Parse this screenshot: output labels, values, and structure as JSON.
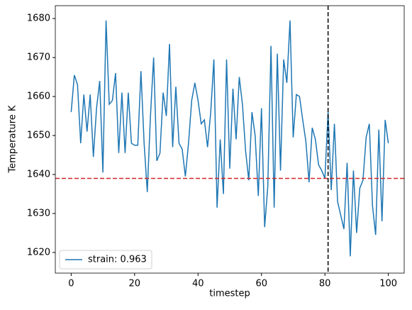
{
  "chart_data": {
    "type": "line",
    "xlabel": "timestep",
    "ylabel": "Temperature K",
    "x": [
      0,
      1,
      2,
      3,
      4,
      5,
      6,
      7,
      8,
      9,
      10,
      11,
      12,
      13,
      14,
      15,
      16,
      17,
      18,
      19,
      20,
      21,
      22,
      23,
      24,
      25,
      26,
      27,
      28,
      29,
      30,
      31,
      32,
      33,
      34,
      35,
      36,
      37,
      38,
      39,
      40,
      41,
      42,
      43,
      44,
      45,
      46,
      47,
      48,
      49,
      50,
      51,
      52,
      53,
      54,
      55,
      56,
      57,
      58,
      59,
      60,
      61,
      62,
      63,
      64,
      65,
      66,
      67,
      68,
      69,
      70,
      71,
      72,
      73,
      74,
      75,
      76,
      77,
      78,
      79,
      80,
      81,
      82,
      83,
      84,
      85,
      86,
      87,
      88,
      89,
      90,
      91,
      92,
      93,
      94,
      95,
      96,
      97,
      98,
      99,
      100
    ],
    "series": [
      {
        "name": "strain: 0.963",
        "color": "#1f77b4",
        "values": [
          1656,
          1665.5,
          1663,
          1648,
          1660.5,
          1651,
          1660.5,
          1644.5,
          1657,
          1664,
          1640.5,
          1679.5,
          1658,
          1659,
          1666,
          1645.5,
          1661,
          1645.5,
          1661,
          1648,
          1647.5,
          1647.5,
          1666.5,
          1648,
          1635.5,
          1655,
          1670,
          1643.5,
          1645.5,
          1661,
          1655,
          1673.5,
          1647,
          1662.5,
          1648,
          1646.5,
          1639.5,
          1648,
          1659,
          1663.5,
          1659,
          1653,
          1654,
          1647,
          1656,
          1669.5,
          1631.5,
          1649,
          1635,
          1669.5,
          1641.5,
          1662,
          1649,
          1665,
          1658,
          1646,
          1638.5,
          1656,
          1650,
          1634.5,
          1657,
          1626.5,
          1637,
          1673,
          1631.5,
          1671,
          1641,
          1669.5,
          1663.5,
          1679.5,
          1649.5,
          1660.5,
          1660,
          1654,
          1648.5,
          1638,
          1652,
          1649,
          1642.5,
          1641,
          1639,
          1656,
          1636,
          1653,
          1633,
          1629.5,
          1626,
          1643,
          1619,
          1641,
          1625,
          1636.5,
          1638.5,
          1649.5,
          1653,
          1632,
          1624.5,
          1651.5,
          1628,
          1654,
          1648
        ]
      }
    ],
    "hline": {
      "y": 1639,
      "color": "#d62728"
    },
    "vline": {
      "x": 81,
      "color": "#000000"
    },
    "xlim": [
      -5,
      105
    ],
    "xticks": [
      0,
      20,
      40,
      60,
      80,
      100
    ],
    "ylim": [
      1614.7,
      1683.3
    ],
    "yticks": [
      1620,
      1630,
      1640,
      1650,
      1660,
      1670,
      1680
    ],
    "legend": "lower left"
  }
}
